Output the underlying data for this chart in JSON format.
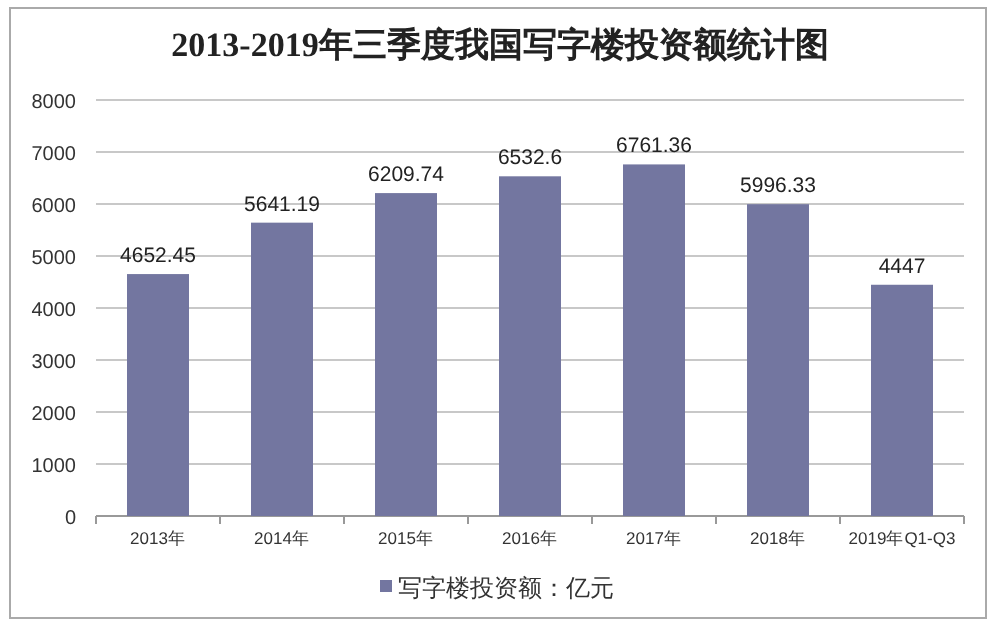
{
  "chart_data": {
    "type": "bar",
    "title": "2013-2019年三季度我国写字楼投资额统计图",
    "categories": [
      "2013年",
      "2014年",
      "2015年",
      "2016年",
      "2017年",
      "2018年",
      "2019年Q1-Q3"
    ],
    "series": [
      {
        "name": "写字楼投资额：亿元",
        "color": "#7376a0",
        "values": [
          4652.45,
          5641.19,
          6209.74,
          6532.6,
          6761.36,
          5996.33,
          4447
        ]
      }
    ],
    "ylim": [
      0,
      8000
    ],
    "yticks": [
      0,
      1000,
      2000,
      3000,
      4000,
      5000,
      6000,
      7000,
      8000
    ],
    "grid": "y",
    "legend": "bottom",
    "data_labels": true
  }
}
